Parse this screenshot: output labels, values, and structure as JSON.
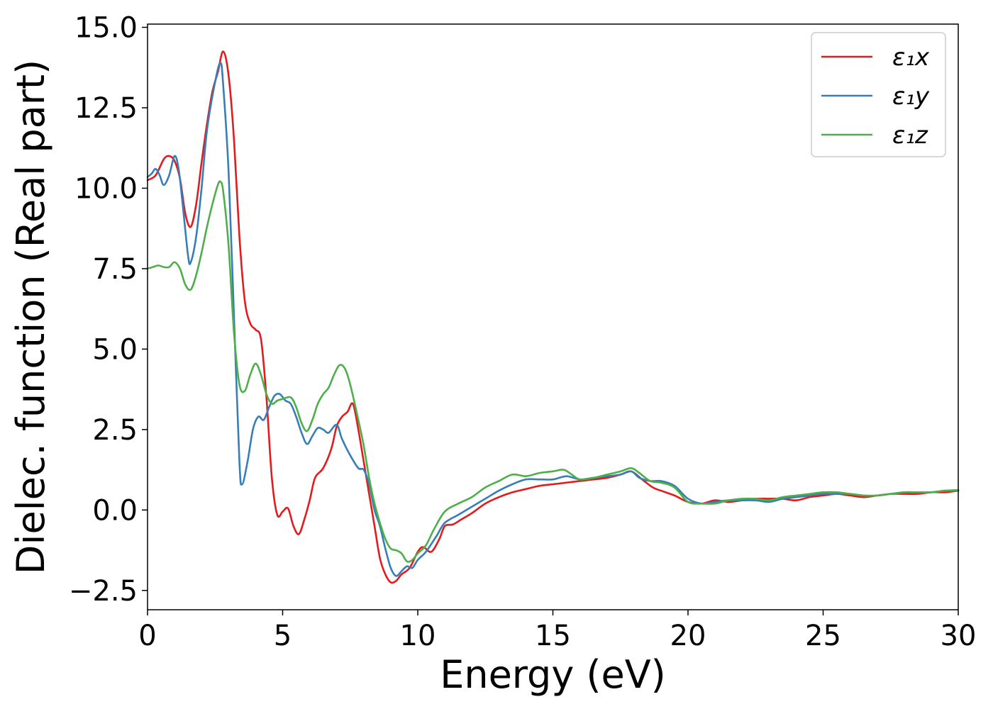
{
  "chart_data": {
    "type": "line",
    "xlabel": "Energy (eV)",
    "ylabel": "Dielec. function (Real part)",
    "xlim": [
      0,
      30
    ],
    "ylim": [
      -3.1,
      15.1
    ],
    "x_ticks": [
      0,
      5,
      10,
      15,
      20,
      25,
      30
    ],
    "x_tick_labels": [
      "0",
      "5",
      "10",
      "15",
      "20",
      "25",
      "30"
    ],
    "y_ticks": [
      -2.5,
      0.0,
      2.5,
      5.0,
      7.5,
      10.0,
      12.5,
      15.0
    ],
    "y_tick_labels": [
      "−2.5",
      "0.0",
      "2.5",
      "5.0",
      "7.5",
      "10.0",
      "12.5",
      "15.0"
    ],
    "grid": false,
    "legend_position": "top-right",
    "series": [
      {
        "name": "ε₁x",
        "color": "#e41a1c",
        "points": [
          [
            0,
            10.25
          ],
          [
            0.3,
            10.4
          ],
          [
            0.6,
            10.9
          ],
          [
            0.8,
            11.0
          ],
          [
            1.0,
            10.85
          ],
          [
            1.2,
            10.3
          ],
          [
            1.4,
            9.2
          ],
          [
            1.6,
            8.8
          ],
          [
            1.8,
            9.5
          ],
          [
            2.0,
            10.8
          ],
          [
            2.2,
            12.0
          ],
          [
            2.4,
            13.0
          ],
          [
            2.6,
            13.6
          ],
          [
            2.8,
            14.25
          ],
          [
            3.0,
            13.5
          ],
          [
            3.2,
            11.5
          ],
          [
            3.4,
            8.5
          ],
          [
            3.6,
            6.5
          ],
          [
            3.8,
            5.8
          ],
          [
            4.0,
            5.6
          ],
          [
            4.2,
            5.3
          ],
          [
            4.4,
            3.5
          ],
          [
            4.6,
            1.0
          ],
          [
            4.8,
            -0.15
          ],
          [
            5.0,
            -0.05
          ],
          [
            5.2,
            0.05
          ],
          [
            5.4,
            -0.5
          ],
          [
            5.6,
            -0.75
          ],
          [
            5.8,
            -0.3
          ],
          [
            6.0,
            0.3
          ],
          [
            6.2,
            1.0
          ],
          [
            6.5,
            1.3
          ],
          [
            6.8,
            1.9
          ],
          [
            7.0,
            2.6
          ],
          [
            7.2,
            2.9
          ],
          [
            7.4,
            3.05
          ],
          [
            7.6,
            3.3
          ],
          [
            7.8,
            2.5
          ],
          [
            8.0,
            1.5
          ],
          [
            8.2,
            0.5
          ],
          [
            8.4,
            -0.5
          ],
          [
            8.6,
            -1.5
          ],
          [
            8.8,
            -2.0
          ],
          [
            9.0,
            -2.25
          ],
          [
            9.2,
            -2.2
          ],
          [
            9.4,
            -2.0
          ],
          [
            9.7,
            -1.8
          ],
          [
            10.0,
            -1.3
          ],
          [
            10.2,
            -1.15
          ],
          [
            10.5,
            -1.3
          ],
          [
            10.8,
            -0.9
          ],
          [
            11.0,
            -0.5
          ],
          [
            11.3,
            -0.45
          ],
          [
            11.6,
            -0.3
          ],
          [
            12.0,
            -0.1
          ],
          [
            12.5,
            0.2
          ],
          [
            13.0,
            0.4
          ],
          [
            13.5,
            0.55
          ],
          [
            14.0,
            0.65
          ],
          [
            14.5,
            0.75
          ],
          [
            15.0,
            0.8
          ],
          [
            15.5,
            0.85
          ],
          [
            16.0,
            0.9
          ],
          [
            16.5,
            0.95
          ],
          [
            17.0,
            1.0
          ],
          [
            17.5,
            1.1
          ],
          [
            17.9,
            1.2
          ],
          [
            18.3,
            0.95
          ],
          [
            18.7,
            0.7
          ],
          [
            19.0,
            0.6
          ],
          [
            19.5,
            0.45
          ],
          [
            20.0,
            0.25
          ],
          [
            20.5,
            0.2
          ],
          [
            21.0,
            0.3
          ],
          [
            21.5,
            0.25
          ],
          [
            22.0,
            0.3
          ],
          [
            22.5,
            0.35
          ],
          [
            23.0,
            0.35
          ],
          [
            23.5,
            0.35
          ],
          [
            24.0,
            0.3
          ],
          [
            24.5,
            0.4
          ],
          [
            25.0,
            0.45
          ],
          [
            25.5,
            0.5
          ],
          [
            26.0,
            0.45
          ],
          [
            26.5,
            0.4
          ],
          [
            27.0,
            0.45
          ],
          [
            27.5,
            0.5
          ],
          [
            28.0,
            0.5
          ],
          [
            28.5,
            0.5
          ],
          [
            29.0,
            0.55
          ],
          [
            29.5,
            0.55
          ],
          [
            30.0,
            0.6
          ]
        ]
      },
      {
        "name": "ε₁y",
        "color": "#377eb8",
        "points": [
          [
            0,
            10.35
          ],
          [
            0.15,
            10.45
          ],
          [
            0.3,
            10.6
          ],
          [
            0.45,
            10.4
          ],
          [
            0.6,
            10.1
          ],
          [
            0.8,
            10.4
          ],
          [
            1.0,
            11.0
          ],
          [
            1.15,
            10.6
          ],
          [
            1.3,
            9.5
          ],
          [
            1.5,
            7.9
          ],
          [
            1.6,
            7.7
          ],
          [
            1.8,
            8.5
          ],
          [
            2.0,
            10.0
          ],
          [
            2.2,
            11.8
          ],
          [
            2.5,
            13.3
          ],
          [
            2.7,
            13.9
          ],
          [
            2.8,
            13.2
          ],
          [
            3.0,
            10.5
          ],
          [
            3.2,
            6.0
          ],
          [
            3.4,
            1.5
          ],
          [
            3.5,
            0.8
          ],
          [
            3.7,
            1.5
          ],
          [
            3.9,
            2.5
          ],
          [
            4.1,
            2.9
          ],
          [
            4.3,
            2.8
          ],
          [
            4.5,
            3.2
          ],
          [
            4.7,
            3.55
          ],
          [
            4.9,
            3.6
          ],
          [
            5.1,
            3.4
          ],
          [
            5.3,
            3.3
          ],
          [
            5.5,
            2.9
          ],
          [
            5.7,
            2.4
          ],
          [
            5.9,
            2.05
          ],
          [
            6.1,
            2.3
          ],
          [
            6.3,
            2.55
          ],
          [
            6.5,
            2.5
          ],
          [
            6.7,
            2.4
          ],
          [
            7.0,
            2.65
          ],
          [
            7.2,
            2.2
          ],
          [
            7.5,
            1.7
          ],
          [
            7.8,
            1.3
          ],
          [
            8.0,
            1.25
          ],
          [
            8.2,
            0.8
          ],
          [
            8.4,
            0.0
          ],
          [
            8.6,
            -0.5
          ],
          [
            8.8,
            -1.2
          ],
          [
            9.0,
            -1.8
          ],
          [
            9.2,
            -2.05
          ],
          [
            9.4,
            -1.9
          ],
          [
            9.6,
            -1.75
          ],
          [
            9.8,
            -1.8
          ],
          [
            10.0,
            -1.55
          ],
          [
            10.3,
            -1.3
          ],
          [
            10.7,
            -0.8
          ],
          [
            11.0,
            -0.4
          ],
          [
            11.5,
            -0.15
          ],
          [
            12.0,
            0.1
          ],
          [
            12.5,
            0.35
          ],
          [
            13.0,
            0.6
          ],
          [
            13.5,
            0.8
          ],
          [
            14.0,
            0.95
          ],
          [
            14.5,
            0.95
          ],
          [
            15.0,
            0.95
          ],
          [
            15.5,
            1.05
          ],
          [
            16.0,
            0.95
          ],
          [
            16.5,
            1.0
          ],
          [
            17.0,
            1.05
          ],
          [
            17.5,
            1.1
          ],
          [
            17.9,
            1.2
          ],
          [
            18.2,
            1.0
          ],
          [
            18.6,
            0.9
          ],
          [
            19.0,
            0.9
          ],
          [
            19.5,
            0.75
          ],
          [
            20.0,
            0.35
          ],
          [
            20.5,
            0.2
          ],
          [
            21.0,
            0.25
          ],
          [
            21.5,
            0.3
          ],
          [
            22.0,
            0.3
          ],
          [
            22.5,
            0.3
          ],
          [
            23.0,
            0.25
          ],
          [
            23.5,
            0.35
          ],
          [
            24.0,
            0.4
          ],
          [
            24.5,
            0.45
          ],
          [
            25.0,
            0.5
          ],
          [
            25.5,
            0.5
          ],
          [
            26.0,
            0.5
          ],
          [
            26.5,
            0.45
          ],
          [
            27.0,
            0.45
          ],
          [
            27.5,
            0.5
          ],
          [
            28.0,
            0.55
          ],
          [
            28.5,
            0.55
          ],
          [
            29.0,
            0.55
          ],
          [
            29.5,
            0.6
          ],
          [
            30.0,
            0.6
          ]
        ]
      },
      {
        "name": "ε₁z",
        "color": "#4daf4a",
        "points": [
          [
            0,
            7.5
          ],
          [
            0.2,
            7.55
          ],
          [
            0.4,
            7.6
          ],
          [
            0.6,
            7.55
          ],
          [
            0.8,
            7.55
          ],
          [
            1.0,
            7.7
          ],
          [
            1.2,
            7.5
          ],
          [
            1.4,
            7.0
          ],
          [
            1.6,
            6.85
          ],
          [
            1.8,
            7.3
          ],
          [
            2.0,
            8.0
          ],
          [
            2.2,
            8.8
          ],
          [
            2.4,
            9.5
          ],
          [
            2.6,
            10.1
          ],
          [
            2.7,
            10.2
          ],
          [
            2.8,
            9.9
          ],
          [
            3.0,
            8.2
          ],
          [
            3.2,
            5.5
          ],
          [
            3.4,
            3.9
          ],
          [
            3.6,
            3.7
          ],
          [
            3.8,
            4.2
          ],
          [
            4.0,
            4.55
          ],
          [
            4.2,
            4.2
          ],
          [
            4.4,
            3.6
          ],
          [
            4.6,
            3.3
          ],
          [
            4.8,
            3.4
          ],
          [
            5.0,
            3.45
          ],
          [
            5.3,
            3.5
          ],
          [
            5.5,
            3.2
          ],
          [
            5.7,
            2.7
          ],
          [
            5.9,
            2.45
          ],
          [
            6.1,
            2.8
          ],
          [
            6.3,
            3.3
          ],
          [
            6.5,
            3.6
          ],
          [
            6.7,
            3.8
          ],
          [
            6.9,
            4.2
          ],
          [
            7.1,
            4.5
          ],
          [
            7.3,
            4.4
          ],
          [
            7.5,
            3.9
          ],
          [
            7.8,
            2.8
          ],
          [
            8.0,
            2.0
          ],
          [
            8.2,
            1.0
          ],
          [
            8.4,
            0.2
          ],
          [
            8.6,
            -0.4
          ],
          [
            8.8,
            -0.9
          ],
          [
            9.0,
            -1.2
          ],
          [
            9.2,
            -1.25
          ],
          [
            9.4,
            -1.35
          ],
          [
            9.6,
            -1.6
          ],
          [
            9.8,
            -1.55
          ],
          [
            10.0,
            -1.35
          ],
          [
            10.3,
            -1.1
          ],
          [
            10.6,
            -0.6
          ],
          [
            11.0,
            -0.05
          ],
          [
            11.5,
            0.2
          ],
          [
            12.0,
            0.4
          ],
          [
            12.5,
            0.7
          ],
          [
            13.0,
            0.9
          ],
          [
            13.5,
            1.1
          ],
          [
            14.0,
            1.05
          ],
          [
            14.5,
            1.15
          ],
          [
            15.0,
            1.2
          ],
          [
            15.4,
            1.25
          ],
          [
            15.7,
            1.1
          ],
          [
            16.0,
            0.95
          ],
          [
            16.5,
            1.0
          ],
          [
            17.0,
            1.1
          ],
          [
            17.5,
            1.2
          ],
          [
            17.9,
            1.3
          ],
          [
            18.2,
            1.15
          ],
          [
            18.6,
            0.9
          ],
          [
            19.0,
            0.85
          ],
          [
            19.5,
            0.7
          ],
          [
            20.0,
            0.25
          ],
          [
            20.5,
            0.2
          ],
          [
            21.0,
            0.2
          ],
          [
            21.5,
            0.3
          ],
          [
            22.0,
            0.35
          ],
          [
            22.5,
            0.35
          ],
          [
            23.0,
            0.3
          ],
          [
            23.5,
            0.4
          ],
          [
            24.0,
            0.45
          ],
          [
            24.5,
            0.5
          ],
          [
            25.0,
            0.55
          ],
          [
            25.5,
            0.55
          ],
          [
            26.0,
            0.5
          ],
          [
            26.5,
            0.45
          ],
          [
            27.0,
            0.45
          ],
          [
            27.5,
            0.5
          ],
          [
            28.0,
            0.55
          ],
          [
            28.5,
            0.55
          ],
          [
            29.0,
            0.55
          ],
          [
            29.5,
            0.6
          ],
          [
            30.0,
            0.62
          ]
        ]
      }
    ]
  }
}
